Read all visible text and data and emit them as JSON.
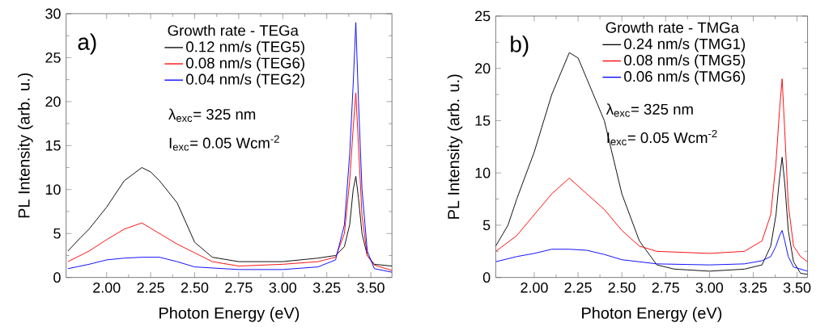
{
  "chart_data": [
    {
      "type": "line",
      "xlabel": "Photon Energy (eV)",
      "ylabel": "PL Intensity (arb. u.)",
      "legend_title": "Growth rate - TEGa",
      "legend": "top right",
      "annotations": [
        "a)",
        "λ$_{exc}$= 325 nm",
        "I$_{exc}$= 0.05 Wcm$^{-2}$"
      ],
      "xlim": [
        1.77,
        3.62
      ],
      "ylim": [
        0,
        30
      ],
      "xticks": [
        {
          "value": 2.0,
          "label": "2.00"
        },
        {
          "value": 2.25,
          "label": "2.25"
        },
        {
          "value": 2.5,
          "label": "2.50"
        },
        {
          "value": 2.75,
          "label": "2.75"
        },
        {
          "value": 3.0,
          "label": "3.00"
        },
        {
          "value": 3.25,
          "label": "3.25"
        },
        {
          "value": 3.5,
          "label": "3.50"
        }
      ],
      "yticks": [
        0,
        5,
        10,
        15,
        20,
        25,
        30
      ],
      "series": [
        {
          "name": "0.12 nm/s (TEG5)",
          "color": "#000000",
          "x": [
            1.78,
            1.85,
            1.9,
            2.0,
            2.1,
            2.2,
            2.25,
            2.3,
            2.4,
            2.5,
            2.6,
            2.75,
            3.0,
            3.2,
            3.3,
            3.35,
            3.38,
            3.4,
            3.415,
            3.43,
            3.45,
            3.48,
            3.52,
            3.62
          ],
          "values": [
            3,
            4.5,
            5.5,
            8,
            11,
            12.5,
            12,
            11,
            8.5,
            4,
            2.3,
            1.8,
            1.8,
            2.2,
            2.5,
            3.5,
            6,
            10,
            11.5,
            9,
            5,
            2.5,
            1.5,
            1.3
          ]
        },
        {
          "name": "0.08 nm/s (TEG6)",
          "color": "#ff0000",
          "x": [
            1.78,
            1.9,
            2.0,
            2.1,
            2.2,
            2.3,
            2.4,
            2.5,
            2.6,
            2.75,
            3.0,
            3.2,
            3.3,
            3.35,
            3.38,
            3.4,
            3.415,
            3.43,
            3.45,
            3.48,
            3.52,
            3.62
          ],
          "values": [
            1.8,
            3,
            4.3,
            5.5,
            6.2,
            5,
            3.8,
            2.8,
            1.8,
            1.3,
            1.5,
            1.8,
            2.3,
            5,
            11,
            17,
            21,
            15,
            7,
            2.5,
            1.4,
            0.8
          ]
        },
        {
          "name": "0.04 nm/s (TEG2)",
          "color": "#0000ff",
          "x": [
            1.78,
            1.9,
            2.0,
            2.1,
            2.2,
            2.3,
            2.4,
            2.5,
            2.75,
            3.0,
            3.2,
            3.3,
            3.35,
            3.38,
            3.4,
            3.415,
            3.43,
            3.45,
            3.48,
            3.52,
            3.62
          ],
          "values": [
            1,
            1.5,
            2,
            2.2,
            2.3,
            2.3,
            1.8,
            1.2,
            0.9,
            0.9,
            1.2,
            2,
            6,
            14,
            22,
            29,
            20,
            10,
            3,
            1,
            0.6
          ]
        }
      ]
    },
    {
      "type": "line",
      "xlabel": "Photon Energy (eV)",
      "ylabel": "PL Intensity (arb. u.)",
      "legend_title": "Growth rate - TMGa",
      "legend": "top right",
      "annotations": [
        "b)",
        "λ$_{exc}$= 325 nm",
        "I$_{exc}$= 0.05 Wcm$^{-2}$"
      ],
      "xlim": [
        1.78,
        3.56
      ],
      "ylim": [
        0,
        25
      ],
      "xticks": [
        {
          "value": 2.0,
          "label": "2.00"
        },
        {
          "value": 2.25,
          "label": "2.25"
        },
        {
          "value": 2.5,
          "label": "2.50"
        },
        {
          "value": 2.75,
          "label": "2.75"
        },
        {
          "value": 3.0,
          "label": "3.00"
        },
        {
          "value": 3.25,
          "label": "3.25"
        },
        {
          "value": 3.5,
          "label": "3.50"
        }
      ],
      "yticks": [
        0,
        5,
        10,
        15,
        20,
        25
      ],
      "series": [
        {
          "name": "0.24 nm/s (TMG1)",
          "color": "#000000",
          "x": [
            1.78,
            1.85,
            1.9,
            2.0,
            2.1,
            2.2,
            2.25,
            2.3,
            2.4,
            2.5,
            2.6,
            2.7,
            2.8,
            3.0,
            3.2,
            3.3,
            3.35,
            3.38,
            3.4,
            3.415,
            3.43,
            3.45,
            3.48,
            3.52,
            3.56
          ],
          "values": [
            3,
            5,
            7.5,
            12,
            17.5,
            21.5,
            21,
            19,
            15,
            8,
            3.5,
            1.2,
            0.8,
            0.6,
            0.8,
            1.2,
            3,
            6,
            9.5,
            11.5,
            9,
            4.5,
            1.5,
            0.4,
            0.3
          ]
        },
        {
          "name": "0.08 nm/s (TMG5)",
          "color": "#ff0000",
          "x": [
            1.78,
            1.9,
            2.0,
            2.1,
            2.2,
            2.3,
            2.4,
            2.5,
            2.6,
            2.7,
            3.0,
            3.2,
            3.3,
            3.35,
            3.38,
            3.4,
            3.415,
            3.43,
            3.45,
            3.48,
            3.52,
            3.56
          ],
          "values": [
            2.5,
            4,
            6,
            8,
            9.5,
            8,
            6.5,
            4.5,
            3,
            2.5,
            2.3,
            2.5,
            3.5,
            6,
            11,
            16,
            19,
            14,
            7,
            3,
            2,
            1.5
          ]
        },
        {
          "name": "0.06 nm/s (TMG6)",
          "color": "#0000ff",
          "x": [
            1.78,
            1.9,
            2.0,
            2.1,
            2.2,
            2.3,
            2.4,
            2.5,
            2.7,
            3.0,
            3.2,
            3.3,
            3.35,
            3.38,
            3.4,
            3.415,
            3.43,
            3.45,
            3.48,
            3.56
          ],
          "values": [
            1.5,
            2,
            2.3,
            2.7,
            2.7,
            2.6,
            2.2,
            1.7,
            1.3,
            1.2,
            1.3,
            1.6,
            2,
            3,
            4,
            4.5,
            3.5,
            2,
            1,
            0.6
          ]
        }
      ]
    }
  ]
}
